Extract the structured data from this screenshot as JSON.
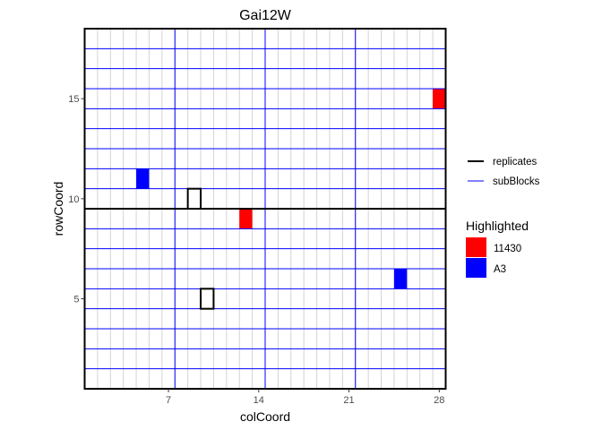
{
  "chart_data": {
    "type": "heatmap",
    "title": "Gai12W",
    "xlabel": "colCoord",
    "ylabel": "rowCoord",
    "xlim": [
      0.5,
      28.5
    ],
    "ylim": [
      0.5,
      18.5
    ],
    "x_ticks": [
      7,
      14,
      21,
      28
    ],
    "y_ticks": [
      5,
      10,
      15
    ],
    "n_cols": 28,
    "n_rows": 18,
    "grid": "vertical lines at column boundaries",
    "replicate_lines": {
      "horizontal": [
        9.5
      ]
    },
    "subblock_lines": {
      "vertical": [
        7.5,
        14.5,
        21.5
      ],
      "horizontal": [
        1.5,
        2.5,
        3.5,
        4.5,
        5.5,
        6.5,
        7.5,
        8.5,
        10.5,
        11.5,
        12.5,
        13.5,
        14.5,
        15.5,
        16.5,
        17.5
      ]
    },
    "highlighted": [
      {
        "group": "11430",
        "col": 28,
        "row": 15
      },
      {
        "group": "11430",
        "col": 13,
        "row": 9
      },
      {
        "group": "A3",
        "col": 5,
        "row": 11
      },
      {
        "group": "A3",
        "col": 25,
        "row": 6
      }
    ],
    "outlined_plots": [
      {
        "col": 9,
        "row": 10
      },
      {
        "col": 10,
        "row": 5
      }
    ],
    "legend": {
      "placement": "right",
      "lines": [
        {
          "label": "replicates",
          "color": "#000000"
        },
        {
          "label": "subBlocks",
          "color": "#0000ff"
        }
      ],
      "fill_title": "Highlighted",
      "fill": [
        {
          "label": "11430",
          "color": "#ff0000"
        },
        {
          "label": "A3",
          "color": "#0000ff"
        }
      ]
    }
  }
}
